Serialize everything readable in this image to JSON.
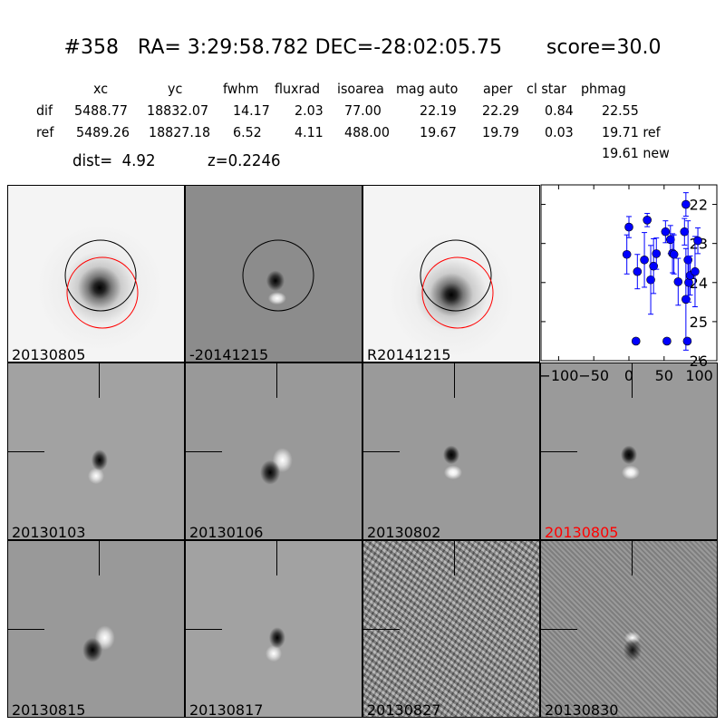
{
  "header": {
    "title": "#358   RA= 3:29:58.782 DEC=-28:02:05.75       score=30.0"
  },
  "table": {
    "columns": [
      "xc",
      "yc",
      "fwhm",
      "fluxrad",
      "isoarea",
      "mag auto",
      "aper",
      "cl star",
      "phmag"
    ],
    "rows": [
      {
        "label": "dif",
        "values": [
          "5488.77",
          "18832.07",
          "14.17",
          "2.03",
          "77.00",
          "22.19",
          "22.29",
          "0.84",
          "22.55"
        ]
      },
      {
        "label": "ref",
        "values": [
          "5489.26",
          "18827.18",
          "6.52",
          "4.11",
          "488.00",
          "19.67",
          "19.79",
          "0.03",
          "19.71 ref"
        ]
      }
    ],
    "extra_phmag": "19.61 new",
    "dist": "dist=  4.92",
    "z": "z=0.2246"
  },
  "panels": [
    {
      "label": "20130805",
      "kind": "white",
      "circles": true
    },
    {
      "label": "-20141215",
      "kind": "dif1",
      "circles": true
    },
    {
      "label": "R20141215",
      "kind": "white2",
      "circles": true
    },
    {
      "label": "20130103",
      "kind": "d1"
    },
    {
      "label": "20130106",
      "kind": "d2"
    },
    {
      "label": "20130802",
      "kind": "d3"
    },
    {
      "label": "20130805",
      "kind": "d3",
      "highlight": true
    },
    {
      "label": "20130815",
      "kind": "d2"
    },
    {
      "label": "20130817",
      "kind": "d1"
    },
    {
      "label": "20130827",
      "kind": "noisy"
    },
    {
      "label": "20130830",
      "kind": "noisy2"
    }
  ],
  "colors": {
    "highlight": "#ff0000",
    "points": "#0000ff",
    "circle_ref": "#000000",
    "circle_new": "#ff0000"
  },
  "chart_data": {
    "type": "scatter",
    "xlim": [
      -125,
      125
    ],
    "ylim": [
      26,
      21.5
    ],
    "y_inverted": true,
    "xticks": [
      -100,
      -50,
      0,
      50,
      100
    ],
    "xtick_labels": [
      "−100",
      "−50",
      "0",
      "50",
      "100"
    ],
    "yticks": [
      22,
      23,
      24,
      25,
      26
    ],
    "ytick_labels": [
      "22",
      "23",
      "24",
      "25",
      "26"
    ],
    "grid": false,
    "points": [
      {
        "x": -3,
        "y": 23.28,
        "err": 0.5
      },
      {
        "x": 0,
        "y": 22.58,
        "err": 0.27
      },
      {
        "x": 12,
        "y": 23.72,
        "err": 0.44
      },
      {
        "x": 10,
        "y": 25.5,
        "err": 0.05
      },
      {
        "x": 22,
        "y": 23.42,
        "err": 0.7
      },
      {
        "x": 26,
        "y": 22.4,
        "err": 0.17
      },
      {
        "x": 31,
        "y": 23.93,
        "err": 0.88
      },
      {
        "x": 35,
        "y": 23.58,
        "err": 0.7
      },
      {
        "x": 39,
        "y": 23.26,
        "err": 0.4
      },
      {
        "x": 52,
        "y": 22.7,
        "err": 0.28
      },
      {
        "x": 54,
        "y": 25.5,
        "err": 0.05
      },
      {
        "x": 59,
        "y": 22.9,
        "err": 0.36
      },
      {
        "x": 62,
        "y": 23.25,
        "err": 0.5
      },
      {
        "x": 64,
        "y": 23.28,
        "err": 0.5
      },
      {
        "x": 70,
        "y": 23.98,
        "err": 0.6
      },
      {
        "x": 79,
        "y": 22.7,
        "err": 0.34
      },
      {
        "x": 81,
        "y": 22.0,
        "err": 0.3
      },
      {
        "x": 81,
        "y": 24.43,
        "err": 1.3
      },
      {
        "x": 83,
        "y": 25.5,
        "err": 0.05
      },
      {
        "x": 84,
        "y": 23.42,
        "err": 1.0
      },
      {
        "x": 85,
        "y": 24.0,
        "err": 0.5
      },
      {
        "x": 87,
        "y": 23.82,
        "err": 0.5
      },
      {
        "x": 94,
        "y": 23.72,
        "err": 0.9
      },
      {
        "x": 98,
        "y": 22.93,
        "err": 0.33
      }
    ]
  }
}
